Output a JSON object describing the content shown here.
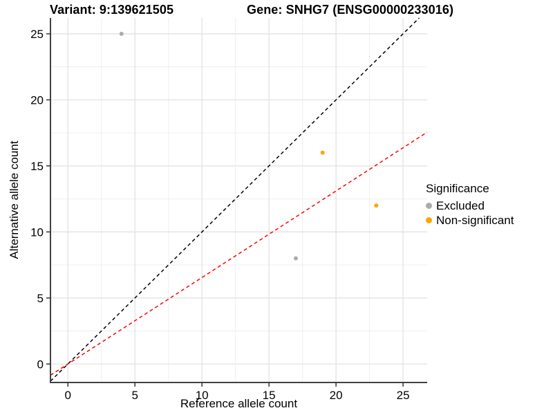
{
  "chart_data": {
    "type": "scatter",
    "title_left": "Variant: 9:139621505",
    "title_right": "Gene: SNHG7 (ENSG00000233016)",
    "xlabel": "Reference allele count",
    "ylabel": "Alternative allele count",
    "xlim": [
      -1.3,
      26.8
    ],
    "ylim": [
      -1.4,
      26.2
    ],
    "x_ticks": [
      0,
      5,
      10,
      15,
      20,
      25
    ],
    "y_ticks": [
      0,
      5,
      10,
      15,
      20,
      25
    ],
    "x_minor_ticks": [
      2.5,
      7.5,
      12.5,
      17.5,
      22.5
    ],
    "y_minor_ticks": [
      2.5,
      7.5,
      12.5,
      17.5,
      22.5
    ],
    "grid": true,
    "legend_position": "right",
    "points": [
      {
        "x": 4,
        "y": 25,
        "significance": "Excluded"
      },
      {
        "x": 17,
        "y": 8,
        "significance": "Excluded"
      },
      {
        "x": 19,
        "y": 16,
        "significance": "Non-significant"
      },
      {
        "x": 23,
        "y": 12,
        "significance": "Non-significant"
      }
    ],
    "lines": [
      {
        "name": "identity-line",
        "slope": 1,
        "intercept": 0,
        "color": "#000000",
        "style": "dashed"
      },
      {
        "name": "estimated-ratio-line",
        "slope": 0.655,
        "intercept": 0,
        "color": "#FF0000",
        "style": "dashed"
      }
    ],
    "legend": {
      "title": "Significance",
      "items": [
        {
          "label": "Excluded",
          "color": "#ABABAB"
        },
        {
          "label": "Non-significant",
          "color": "#FFA500"
        }
      ]
    },
    "colors": {
      "grid_major": "#E2E2E2",
      "grid_minor": "#EFEFEF",
      "axis_line": "#404040",
      "tick_mark": "#333333",
      "tick_label": "#000000",
      "background": "#FFFFFF"
    }
  }
}
